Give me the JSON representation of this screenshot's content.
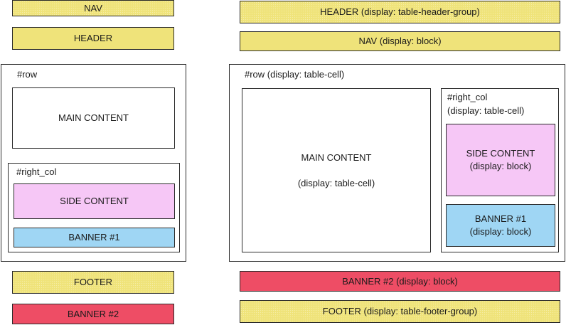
{
  "left": {
    "nav": "NAV",
    "header": "HEADER",
    "row": {
      "label": "#row",
      "main": "MAIN CONTENT",
      "right_col": {
        "label": "#right_col",
        "side": "SIDE CONTENT",
        "banner1": "BANNER #1"
      }
    },
    "footer": "FOOTER",
    "banner2": "BANNER #2"
  },
  "right": {
    "header": "HEADER (display: table-header-group)",
    "nav": "NAV (display: block)",
    "row": {
      "label": "#row (display: table-cell)",
      "main": {
        "title": "MAIN CONTENT",
        "display": "(display: table-cell)"
      },
      "right_col": {
        "label_line1": "#right_col",
        "label_line2": "(display: table-cell)",
        "side": {
          "title": "SIDE CONTENT",
          "display": "(display: block)"
        },
        "banner1": {
          "title": "BANNER #1",
          "display": "(display: block)"
        }
      }
    },
    "banner2": "BANNER #2 (display: block)",
    "footer": "FOOTER (display: table-footer-group)"
  },
  "colors": {
    "yellow": "#efe37a",
    "red": "#ee4d65",
    "pink": "#f6c7f6",
    "blue": "#9fd6f4"
  }
}
